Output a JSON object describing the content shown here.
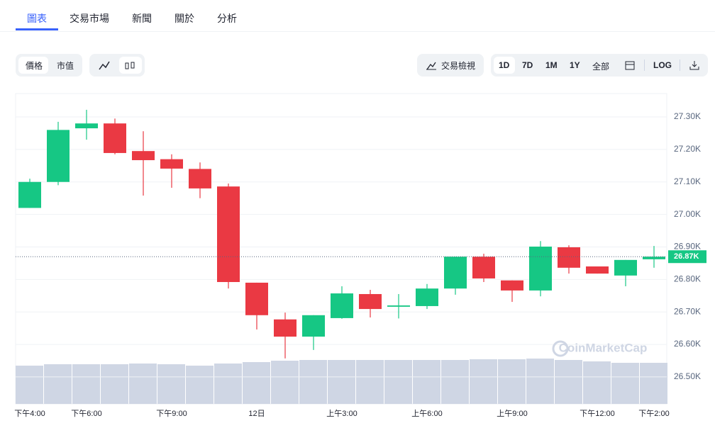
{
  "tabs": [
    "圖表",
    "交易市場",
    "新聞",
    "關於",
    "分析"
  ],
  "toolbar": {
    "price": "價格",
    "market_cap": "市值",
    "trading_view": "交易檢視",
    "ranges": [
      "1D",
      "7D",
      "1M",
      "1Y",
      "全部"
    ],
    "log": "LOG"
  },
  "watermark": "CoinMarketCap",
  "chart_data": {
    "type": "candlestick",
    "categories": [
      "下午4:00",
      null,
      "下午6:00",
      null,
      null,
      "下午9:00",
      null,
      null,
      "12日",
      null,
      null,
      "上午3:00",
      null,
      null,
      "上午6:00",
      null,
      null,
      "上午9:00",
      null,
      null,
      "下午12:00",
      null,
      "下午2:00"
    ],
    "open": [
      27020,
      27100,
      27265,
      27280,
      27195,
      27170,
      27140,
      27086,
      26790,
      26677,
      26624,
      26681,
      26755,
      26716,
      26718,
      26772,
      26870,
      26797,
      26766,
      26899,
      26840,
      26812,
      26862
    ],
    "high": [
      27110,
      27285,
      27322,
      27295,
      27256,
      27185,
      27160,
      27095,
      26790,
      26698,
      26690,
      26779,
      26768,
      26755,
      26786,
      26870,
      26879,
      26797,
      26918,
      26905,
      26840,
      26860,
      26903
    ],
    "low": [
      27020,
      27090,
      27230,
      27185,
      27058,
      27082,
      27050,
      26772,
      26646,
      26557,
      26583,
      26679,
      26683,
      26680,
      26709,
      26753,
      26792,
      26731,
      26748,
      26818,
      26818,
      26779,
      26836
    ],
    "close": [
      27100,
      27260,
      27280,
      27189,
      27167,
      27141,
      27080,
      26792,
      26690,
      26624,
      26690,
      26757,
      26709,
      26720,
      26772,
      26870,
      26803,
      26766,
      26901,
      26836,
      26818,
      26860,
      26870
    ],
    "up_color": "#16c784",
    "down_color": "#ea3943",
    "volume": [
      54,
      56,
      56,
      56,
      57,
      56,
      54,
      57,
      59,
      61,
      62,
      62,
      62,
      62,
      62,
      62,
      63,
      63,
      64,
      62,
      60,
      58,
      58
    ],
    "volume_color": "#cfd6e4",
    "volume_ylim": [
      0,
      438
    ],
    "ylim": [
      26417,
      27372
    ],
    "yticks": [
      {
        "value": 26500,
        "label": "26.50K"
      },
      {
        "value": 26600,
        "label": "26.60K"
      },
      {
        "value": 26700,
        "label": "26.70K"
      },
      {
        "value": 26800,
        "label": "26.80K"
      },
      {
        "value": 26900,
        "label": "26.90K"
      },
      {
        "value": 27000,
        "label": "27.00K"
      },
      {
        "value": 27100,
        "label": "27.10K"
      },
      {
        "value": 27200,
        "label": "27.20K"
      },
      {
        "value": 27300,
        "label": "27.30K"
      }
    ],
    "last_price": {
      "value": 26870,
      "label": "26.87K"
    },
    "grid": true
  }
}
